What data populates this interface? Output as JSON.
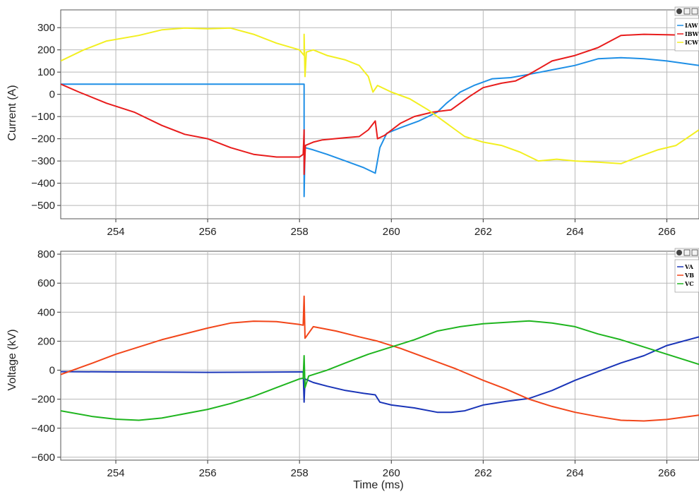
{
  "chart_data": [
    {
      "type": "line",
      "ylabel": "Current (A)",
      "xlabel": "",
      "xlim": [
        252.8,
        266.7
      ],
      "ylim": [
        -560,
        380
      ],
      "xticks": [
        254,
        256,
        258,
        260,
        262,
        264,
        266
      ],
      "yticks": [
        -500,
        -400,
        -300,
        -200,
        -100,
        0,
        100,
        200,
        300
      ],
      "grid": true,
      "legend_position": "top-right",
      "series": [
        {
          "name": "IAW",
          "color": "#1e8fe6",
          "points": [
            [
              252.8,
              46
            ],
            [
              254,
              46
            ],
            [
              256,
              46
            ],
            [
              258,
              46
            ],
            [
              258.1,
              46
            ],
            [
              258.1,
              -100
            ],
            [
              258.1,
              -460
            ],
            [
              258.12,
              -240
            ],
            [
              258.3,
              -250
            ],
            [
              258.6,
              -270
            ],
            [
              259,
              -300
            ],
            [
              259.4,
              -330
            ],
            [
              259.65,
              -355
            ],
            [
              259.75,
              -240
            ],
            [
              259.9,
              -175
            ],
            [
              260.2,
              -150
            ],
            [
              260.6,
              -120
            ],
            [
              261,
              -80
            ],
            [
              261.2,
              -40
            ],
            [
              261.5,
              10
            ],
            [
              261.8,
              40
            ],
            [
              262.2,
              70
            ],
            [
              262.6,
              75
            ],
            [
              263,
              90
            ],
            [
              263.5,
              110
            ],
            [
              264,
              130
            ],
            [
              264.5,
              160
            ],
            [
              265,
              165
            ],
            [
              265.5,
              160
            ],
            [
              266,
              150
            ],
            [
              266.7,
              130
            ]
          ]
        },
        {
          "name": "IBW",
          "color": "#e81c1c",
          "points": [
            [
              252.8,
              46
            ],
            [
              253.2,
              10
            ],
            [
              253.8,
              -40
            ],
            [
              254.4,
              -80
            ],
            [
              255,
              -140
            ],
            [
              255.5,
              -180
            ],
            [
              256,
              -200
            ],
            [
              256.5,
              -240
            ],
            [
              257,
              -270
            ],
            [
              257.5,
              -282
            ],
            [
              258,
              -282
            ],
            [
              258.08,
              -270
            ],
            [
              258.1,
              -160
            ],
            [
              258.1,
              -360
            ],
            [
              258.13,
              -230
            ],
            [
              258.3,
              -215
            ],
            [
              258.5,
              -205
            ],
            [
              259,
              -195
            ],
            [
              259.3,
              -190
            ],
            [
              259.5,
              -160
            ],
            [
              259.65,
              -120
            ],
            [
              259.7,
              -200
            ],
            [
              259.85,
              -185
            ],
            [
              260.2,
              -130
            ],
            [
              260.5,
              -100
            ],
            [
              260.9,
              -80
            ],
            [
              261.3,
              -70
            ],
            [
              261.7,
              -10
            ],
            [
              262,
              30
            ],
            [
              262.4,
              50
            ],
            [
              262.7,
              60
            ],
            [
              263,
              90
            ],
            [
              263.5,
              150
            ],
            [
              264,
              175
            ],
            [
              264.5,
              210
            ],
            [
              265,
              265
            ],
            [
              265.5,
              270
            ],
            [
              266,
              268
            ],
            [
              266.7,
              265
            ]
          ]
        },
        {
          "name": "ICW",
          "color": "#f2ef21",
          "points": [
            [
              252.8,
              150
            ],
            [
              253.3,
              200
            ],
            [
              253.8,
              240
            ],
            [
              254.5,
              265
            ],
            [
              255,
              290
            ],
            [
              255.5,
              298
            ],
            [
              256,
              295
            ],
            [
              256.5,
              298
            ],
            [
              257,
              270
            ],
            [
              257.5,
              230
            ],
            [
              258,
              200
            ],
            [
              258.1,
              175
            ],
            [
              258.1,
              270
            ],
            [
              258.12,
              80
            ],
            [
              258.15,
              190
            ],
            [
              258.3,
              200
            ],
            [
              258.6,
              175
            ],
            [
              259,
              155
            ],
            [
              259.3,
              130
            ],
            [
              259.5,
              80
            ],
            [
              259.6,
              10
            ],
            [
              259.7,
              40
            ],
            [
              260,
              10
            ],
            [
              260.4,
              -20
            ],
            [
              260.8,
              -70
            ],
            [
              261.2,
              -130
            ],
            [
              261.6,
              -190
            ],
            [
              262,
              -215
            ],
            [
              262.4,
              -230
            ],
            [
              262.8,
              -260
            ],
            [
              263.2,
              -300
            ],
            [
              263.6,
              -292
            ],
            [
              264,
              -300
            ],
            [
              264.5,
              -305
            ],
            [
              265,
              -312
            ],
            [
              265.4,
              -280
            ],
            [
              265.8,
              -250
            ],
            [
              266.2,
              -230
            ],
            [
              266.7,
              -160
            ]
          ]
        }
      ]
    },
    {
      "type": "line",
      "ylabel": "Voltage (kV)",
      "xlabel": "Time (ms)",
      "xlim": [
        252.8,
        266.7
      ],
      "ylim": [
        -620,
        820
      ],
      "xticks": [
        254,
        256,
        258,
        260,
        262,
        264,
        266
      ],
      "yticks": [
        -600,
        -400,
        -200,
        0,
        200,
        400,
        600,
        800
      ],
      "grid": true,
      "legend_position": "top-right",
      "series": [
        {
          "name": "VA",
          "color": "#1a35b8",
          "points": [
            [
              252.8,
              -10
            ],
            [
              254,
              -12
            ],
            [
              256,
              -15
            ],
            [
              258,
              -12
            ],
            [
              258.08,
              -12
            ],
            [
              258.1,
              -220
            ],
            [
              258.12,
              -60
            ],
            [
              258.3,
              -85
            ],
            [
              258.6,
              -110
            ],
            [
              259,
              -140
            ],
            [
              259.4,
              -160
            ],
            [
              259.65,
              -170
            ],
            [
              259.75,
              -220
            ],
            [
              260,
              -240
            ],
            [
              260.5,
              -260
            ],
            [
              261,
              -290
            ],
            [
              261.3,
              -290
            ],
            [
              261.6,
              -280
            ],
            [
              262,
              -240
            ],
            [
              262.5,
              -215
            ],
            [
              263,
              -195
            ],
            [
              263.5,
              -140
            ],
            [
              264,
              -70
            ],
            [
              264.5,
              -10
            ],
            [
              265,
              50
            ],
            [
              265.5,
              100
            ],
            [
              266,
              170
            ],
            [
              266.7,
              230
            ]
          ]
        },
        {
          "name": "VB",
          "color": "#f2461a",
          "points": [
            [
              252.8,
              -30
            ],
            [
              253.5,
              50
            ],
            [
              254,
              110
            ],
            [
              255,
              210
            ],
            [
              256,
              290
            ],
            [
              256.5,
              325
            ],
            [
              257,
              338
            ],
            [
              257.5,
              335
            ],
            [
              258,
              315
            ],
            [
              258.08,
              310
            ],
            [
              258.1,
              510
            ],
            [
              258.12,
              220
            ],
            [
              258.3,
              300
            ],
            [
              258.8,
              270
            ],
            [
              259.3,
              230
            ],
            [
              259.7,
              200
            ],
            [
              260.2,
              150
            ],
            [
              260.8,
              80
            ],
            [
              261.4,
              10
            ],
            [
              262,
              -70
            ],
            [
              262.5,
              -130
            ],
            [
              263,
              -200
            ],
            [
              263.5,
              -250
            ],
            [
              264,
              -290
            ],
            [
              264.5,
              -320
            ],
            [
              265,
              -345
            ],
            [
              265.5,
              -350
            ],
            [
              266,
              -340
            ],
            [
              266.7,
              -310
            ]
          ]
        },
        {
          "name": "VC",
          "color": "#1fb51f",
          "points": [
            [
              252.8,
              -280
            ],
            [
              253.5,
              -320
            ],
            [
              254,
              -338
            ],
            [
              254.5,
              -345
            ],
            [
              255,
              -330
            ],
            [
              256,
              -270
            ],
            [
              256.5,
              -230
            ],
            [
              257,
              -180
            ],
            [
              257.5,
              -120
            ],
            [
              258,
              -60
            ],
            [
              258.08,
              -55
            ],
            [
              258.1,
              100
            ],
            [
              258.12,
              -120
            ],
            [
              258.2,
              -40
            ],
            [
              258.6,
              0
            ],
            [
              259,
              50
            ],
            [
              259.5,
              110
            ],
            [
              260,
              160
            ],
            [
              260.5,
              210
            ],
            [
              261,
              270
            ],
            [
              261.5,
              300
            ],
            [
              262,
              320
            ],
            [
              262.5,
              330
            ],
            [
              263,
              340
            ],
            [
              263.5,
              325
            ],
            [
              264,
              300
            ],
            [
              264.5,
              250
            ],
            [
              265,
              210
            ],
            [
              265.5,
              160
            ],
            [
              266,
              110
            ],
            [
              266.7,
              40
            ]
          ]
        }
      ]
    }
  ]
}
